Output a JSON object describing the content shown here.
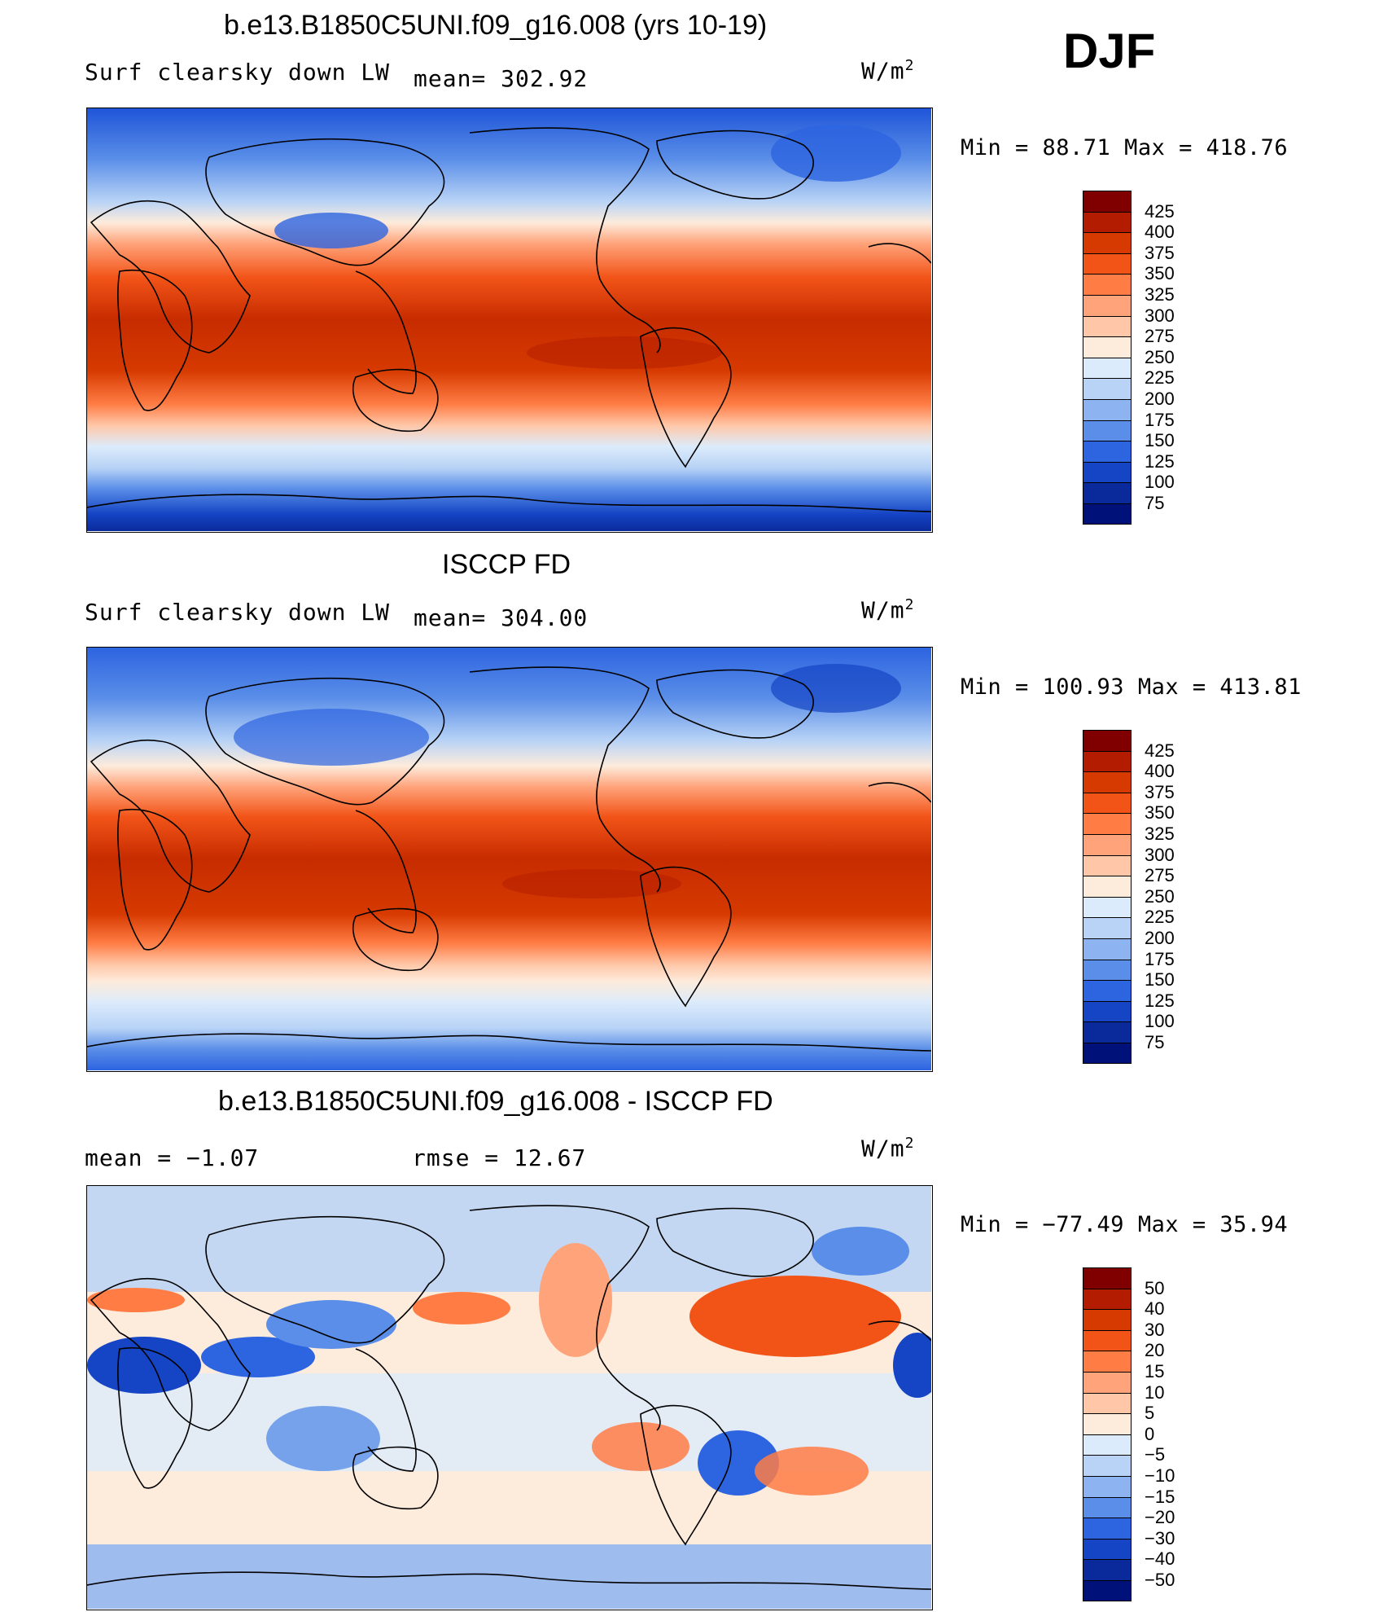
{
  "season": "DJF",
  "panels": [
    {
      "id": "model",
      "title": "b.e13.B1850C5UNI.f09_g16.008 (yrs 10-19)",
      "variable": "Surf clearsky down LW",
      "stat1": "mean= 302.92",
      "stat2": "",
      "units": "W/m",
      "units_sup": "2",
      "minmax": "Min =   88.71 Max = 418.76"
    },
    {
      "id": "obs",
      "title": "ISCCP FD",
      "variable": "Surf clearsky down LW",
      "stat1": "mean= 304.00",
      "stat2": "",
      "units": "W/m",
      "units_sup": "2",
      "minmax": "Min = 100.93 Max = 413.81"
    },
    {
      "id": "diff",
      "title": "b.e13.B1850C5UNI.f09_g16.008 - ISCCP FD",
      "variable": "",
      "stat1": "mean =   −1.07",
      "stat2": "rmse =   12.67",
      "units": "W/m",
      "units_sup": "2",
      "minmax": "Min = −77.49 Max =   35.94"
    }
  ],
  "chart_data": [
    {
      "type": "heatmap",
      "title": "b.e13.B1850C5UNI.f09_g16.008 (yrs 10-19)",
      "variable": "Surf clearsky down LW",
      "units": "W/m2",
      "mean": 302.92,
      "min": 88.71,
      "max": 418.76,
      "colorbar_levels": [
        425,
        400,
        375,
        350,
        325,
        300,
        275,
        250,
        225,
        200,
        175,
        150,
        125,
        100,
        75
      ],
      "colorbar_colors": [
        "#800000",
        "#b31c00",
        "#d63a00",
        "#f25418",
        "#ff7d45",
        "#ffa37a",
        "#ffc7a8",
        "#fdebdc",
        "#dcebfb",
        "#b8d3f6",
        "#8db4f0",
        "#5a8ee8",
        "#2d64e0",
        "#1544c4",
        "#0a2a9c",
        "#00127a"
      ],
      "description_zonal": [
        {
          "lat": 90,
          "value": 160
        },
        {
          "lat": 60,
          "value": 210
        },
        {
          "lat": 40,
          "value": 290
        },
        {
          "lat": 20,
          "value": 360
        },
        {
          "lat": 0,
          "value": 405
        },
        {
          "lat": -20,
          "value": 385
        },
        {
          "lat": -40,
          "value": 300
        },
        {
          "lat": -60,
          "value": 235
        },
        {
          "lat": -80,
          "value": 120
        }
      ]
    },
    {
      "type": "heatmap",
      "title": "ISCCP FD",
      "variable": "Surf clearsky down LW",
      "units": "W/m2",
      "mean": 304.0,
      "min": 100.93,
      "max": 413.81,
      "colorbar_levels": [
        425,
        400,
        375,
        350,
        325,
        300,
        275,
        250,
        225,
        200,
        175,
        150,
        125,
        100,
        75
      ],
      "colorbar_colors": [
        "#800000",
        "#b31c00",
        "#d63a00",
        "#f25418",
        "#ff7d45",
        "#ffa37a",
        "#ffc7a8",
        "#fdebdc",
        "#dcebfb",
        "#b8d3f6",
        "#8db4f0",
        "#5a8ee8",
        "#2d64e0",
        "#1544c4",
        "#0a2a9c",
        "#00127a"
      ],
      "description_zonal": [
        {
          "lat": 90,
          "value": 170
        },
        {
          "lat": 60,
          "value": 205
        },
        {
          "lat": 40,
          "value": 285
        },
        {
          "lat": 20,
          "value": 355
        },
        {
          "lat": 0,
          "value": 400
        },
        {
          "lat": -20,
          "value": 380
        },
        {
          "lat": -40,
          "value": 300
        },
        {
          "lat": -60,
          "value": 240
        },
        {
          "lat": -80,
          "value": 140
        }
      ]
    },
    {
      "type": "heatmap",
      "title": "b.e13.B1850C5UNI.f09_g16.008 - ISCCP FD",
      "units": "W/m2",
      "mean": -1.07,
      "rmse": 12.67,
      "min": -77.49,
      "max": 35.94,
      "colorbar_levels": [
        50,
        40,
        30,
        20,
        15,
        10,
        5,
        0,
        -5,
        -10,
        -15,
        -20,
        -30,
        -40,
        -50
      ],
      "colorbar_colors": [
        "#800000",
        "#b31c00",
        "#d63a00",
        "#f25418",
        "#ff7d45",
        "#ffa37a",
        "#ffc7a8",
        "#fdebdc",
        "#dcebfb",
        "#b8d3f6",
        "#8db4f0",
        "#5a8ee8",
        "#2d64e0",
        "#1544c4",
        "#0a2a9c",
        "#00127a"
      ]
    }
  ]
}
